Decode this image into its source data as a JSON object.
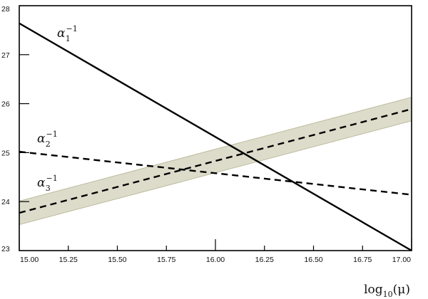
{
  "chart_data": {
    "type": "line",
    "title": "",
    "xlabel": "log10(μ)",
    "xlabel_parts": {
      "base": "log",
      "sub": "10",
      "rest": "(μ)"
    },
    "ylabel": "",
    "xlim": [
      15.0,
      17.0
    ],
    "ylim": [
      23,
      28
    ],
    "x_ticks": [
      15.0,
      15.25,
      15.5,
      15.75,
      16.0,
      16.25,
      16.5,
      16.75,
      17.0
    ],
    "x_tick_labels": [
      "15.00",
      "15.25",
      "15.50",
      "15.75",
      "16.00",
      "16.25",
      "16.50",
      "16.75",
      "17.00"
    ],
    "y_ticks": [
      23,
      24,
      25,
      26,
      27,
      28
    ],
    "y_tick_labels": [
      "23",
      "24",
      "25",
      "26",
      "27",
      "28"
    ],
    "grid": false,
    "series": [
      {
        "label_base": "α",
        "label_sub": "1",
        "label_sup": "−1",
        "style": "solid",
        "x": [
          15.0,
          17.0
        ],
        "y": [
          27.64,
          23.0
        ]
      },
      {
        "label_base": "α",
        "label_sub": "2",
        "label_sup": "−1",
        "style": "dashed",
        "x": [
          15.0,
          17.0
        ],
        "y": [
          25.02,
          24.14
        ]
      },
      {
        "label_base": "α",
        "label_sub": "3",
        "label_sup": "−1",
        "style": "dashed",
        "x": [
          15.0,
          17.0
        ],
        "y": [
          23.77,
          25.89
        ],
        "band": {
          "lower": [
            23.53,
            25.65
          ],
          "upper": [
            24.01,
            26.13
          ]
        }
      }
    ],
    "colors": {
      "line": "#000000",
      "band_fill": "#dddccb",
      "band_edge": "#bdbb9c"
    }
  }
}
